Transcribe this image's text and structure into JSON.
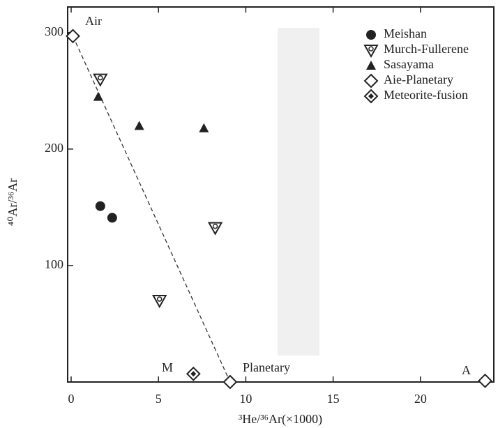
{
  "chart_data": {
    "type": "scatter",
    "x_label": "³He/³⁶Ar(×1000)",
    "y_label": "⁴⁰Ar/³⁶Ar",
    "xlim": [
      -0.2,
      24.2
    ],
    "ylim": [
      0,
      322
    ],
    "xticks": [
      0,
      5,
      10,
      15,
      20
    ],
    "yticks": [
      100,
      200,
      300
    ],
    "legend": "top-right",
    "annotations": [
      "Air",
      "M",
      "Planetary",
      "A"
    ],
    "series": [
      {
        "name": "Meishan",
        "marker": "circle",
        "color": "#222222",
        "x": [
          1.67,
          2.35
        ],
        "values": [
          151,
          141
        ]
      },
      {
        "name": "Murch-Fullerene",
        "marker": "triangle-down-open",
        "color": "#222222",
        "x": [
          1.67,
          8.25,
          5.06
        ],
        "values": [
          260,
          132.5,
          70
        ]
      },
      {
        "name": "Sasayama",
        "marker": "triangle-up",
        "color": "#222222",
        "x": [
          1.55,
          3.9,
          7.6
        ],
        "values": [
          245,
          220,
          218
        ]
      },
      {
        "name": "Aie-Planetary",
        "marker": "diamond-open",
        "color": "#222222",
        "x": [
          0.1,
          9.1,
          23.7
        ],
        "values": [
          297,
          0,
          1
        ]
      },
      {
        "name": "Meteorite-fusion",
        "marker": "diamond-dot",
        "color": "#222222",
        "x": [
          7.0
        ],
        "values": [
          7
        ]
      }
    ]
  }
}
